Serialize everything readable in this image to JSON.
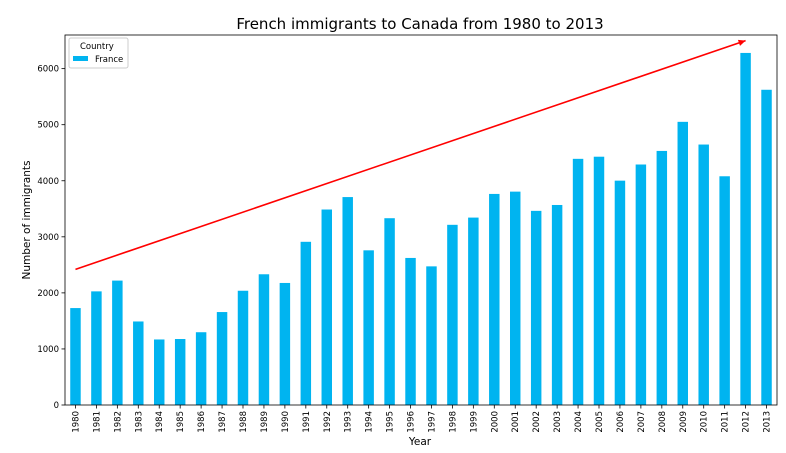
{
  "chart_data": {
    "type": "bar",
    "title": "French immigrants to Canada from 1980 to 2013",
    "xlabel": "Year",
    "ylabel": "Number of immigrants",
    "ylim": [
      0,
      6600
    ],
    "yticks": [
      0,
      1000,
      2000,
      3000,
      4000,
      5000,
      6000
    ],
    "categories": [
      "1980",
      "1981",
      "1982",
      "1983",
      "1984",
      "1985",
      "1986",
      "1987",
      "1988",
      "1989",
      "1990",
      "1991",
      "1992",
      "1993",
      "1994",
      "1995",
      "1996",
      "1997",
      "1998",
      "1999",
      "2000",
      "2001",
      "2002",
      "2003",
      "2004",
      "2005",
      "2006",
      "2007",
      "2008",
      "2009",
      "2010",
      "2011",
      "2012",
      "2013"
    ],
    "series": [
      {
        "name": "France",
        "color": "#00b4f0",
        "values": [
          1729,
          2027,
          2219,
          1490,
          1169,
          1177,
          1298,
          1658,
          2038,
          2332,
          2177,
          2911,
          3487,
          3709,
          2759,
          3332,
          2623,
          2473,
          3214,
          3343,
          3765,
          3806,
          3463,
          3568,
          4391,
          4429,
          4002,
          4290,
          4532,
          5051,
          4646,
          4080,
          6280,
          5623
        ]
      }
    ],
    "legend": {
      "title": "Country",
      "placement": "top-left"
    },
    "annotation": {
      "type": "arrow",
      "color": "#ff0000",
      "from": [
        "1980",
        2420
      ],
      "to": [
        "2012",
        6500
      ]
    },
    "grid": false
  }
}
